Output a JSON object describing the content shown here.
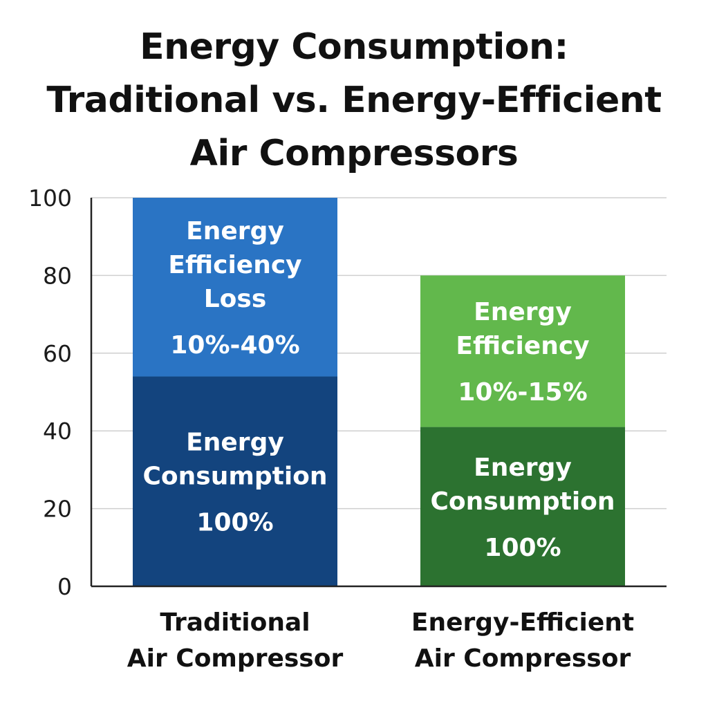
{
  "title_lines": [
    "Energy Consumption:",
    "Traditional vs. Energy-Efficient",
    "Air Compressors"
  ],
  "chart_data": {
    "type": "bar",
    "stacked": true,
    "ylim": [
      0,
      100
    ],
    "yticks": [
      0,
      20,
      40,
      60,
      80,
      100
    ],
    "grid": true,
    "categories": [
      [
        "Traditional",
        "Air Compressor"
      ],
      [
        "Energy-Efficient",
        "Air Compressor"
      ]
    ],
    "bars": [
      {
        "segments": [
          {
            "from": 0,
            "to": 54,
            "color": "#13447e",
            "label_lines": [
              "Energy",
              "Consumption",
              "100%"
            ]
          },
          {
            "from": 54,
            "to": 100,
            "color": "#2a74c4",
            "label_lines": [
              "Energy",
              "Efficiency",
              "Loss",
              "10%-40%"
            ]
          }
        ]
      },
      {
        "segments": [
          {
            "from": 0,
            "to": 41,
            "color": "#2c7230",
            "label_lines": [
              "Energy",
              "Consumption",
              "100%"
            ]
          },
          {
            "from": 41,
            "to": 80,
            "color": "#62b84c",
            "label_lines": [
              "Energy",
              "Efficiency",
              "10%-15%"
            ]
          }
        ]
      }
    ]
  }
}
